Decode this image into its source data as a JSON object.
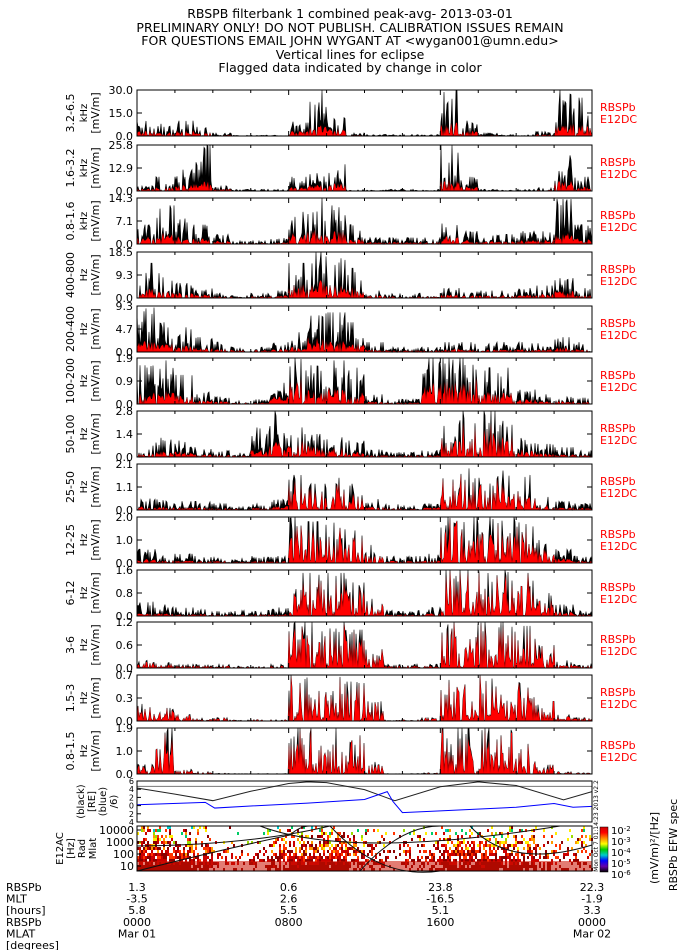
{
  "titles": [
    "RBSPB filterbank 1 combined peak-avg- 2013-03-01",
    "PRELIMINARY ONLY! DO NOT PUBLISH. CALIBRATION ISSUES REMAIN",
    "FOR QUESTIONS EMAIL JOHN WYGANT AT <wygan001@umn.edu>",
    "Vertical lines for eclipse",
    "Flagged data indicated by change in color"
  ],
  "colors": {
    "peak": "#000000",
    "avg": "#ff0000",
    "mlat": "#0000ff",
    "side_label": "#ff0000"
  },
  "chart_data": [
    {
      "type": "area",
      "band": "3.2-6.5",
      "unit": "kHz",
      "ylabel": "[mV/m]",
      "ylim": [
        0,
        30.0
      ],
      "ticks": [
        "0.0",
        "15.0",
        "30.0"
      ],
      "side_label": [
        "RBSPb",
        "E12DC"
      ],
      "peak": [
        12,
        8,
        10,
        6,
        2,
        0.5,
        0.5,
        0.5,
        10,
        30,
        12,
        2,
        1,
        1,
        1,
        1,
        30,
        10,
        2,
        1,
        1,
        3,
        30,
        25
      ],
      "avg": [
        3,
        2,
        3,
        2,
        0.5,
        0.2,
        0.2,
        0.2,
        3,
        6,
        4,
        0.5,
        0.3,
        0.3,
        0.3,
        0.3,
        8,
        3,
        0.5,
        0.3,
        0.3,
        1,
        7,
        6
      ]
    },
    {
      "type": "area",
      "band": "1.6-3.2",
      "unit": "kHz",
      "ylabel": "[mV/m]",
      "ylim": [
        0,
        25.8
      ],
      "ticks": [
        "0.0",
        "12.9",
        "25.8"
      ],
      "side_label": [
        "RBSPb",
        "E12DC"
      ],
      "peak": [
        3,
        8,
        12,
        25.8,
        3,
        1,
        1,
        1,
        8,
        10,
        15,
        1,
        0.5,
        1,
        1,
        1,
        25.8,
        8,
        1,
        0.5,
        1,
        2,
        20,
        8
      ],
      "avg": [
        1,
        2,
        3,
        5,
        1,
        0.3,
        0.3,
        0.3,
        2,
        3,
        4,
        0.3,
        0.2,
        0.3,
        0.3,
        0.3,
        6,
        2,
        0.3,
        0.2,
        0.3,
        0.6,
        5,
        2
      ]
    },
    {
      "type": "area",
      "band": "0.8-1.6",
      "unit": "kHz",
      "ylabel": "[mV/m]",
      "ylim": [
        0,
        14.3
      ],
      "ticks": [
        "0.0",
        "7.1",
        "14.3"
      ],
      "side_label": [
        "RBSPb",
        "E12DC"
      ],
      "peak": [
        6,
        12,
        8,
        6,
        3,
        1,
        1,
        2,
        10,
        14.3,
        12,
        6,
        2,
        2,
        2,
        2,
        8,
        4,
        3,
        3,
        4,
        5,
        14,
        6
      ],
      "avg": [
        2,
        3,
        2,
        1.5,
        0.8,
        0.3,
        0.3,
        0.5,
        3,
        4,
        3.5,
        1.5,
        0.5,
        0.5,
        0.5,
        0.5,
        2,
        1,
        0.8,
        0.8,
        1,
        1.3,
        3,
        1.5
      ]
    },
    {
      "type": "area",
      "band": "400-800",
      "unit": "Hz",
      "ylabel": "[mV/m]",
      "ylim": [
        0,
        18.5
      ],
      "ticks": [
        "0.0",
        "9.3",
        "18.5"
      ],
      "side_label": [
        "RBSPb",
        "E12DC"
      ],
      "peak": [
        14,
        10,
        6,
        4,
        2,
        1,
        2,
        3,
        14,
        18.5,
        16,
        12,
        3,
        2,
        2,
        2,
        4,
        3,
        3,
        3,
        4,
        5,
        8,
        4
      ],
      "avg": [
        4,
        3,
        2,
        1.2,
        0.6,
        0.3,
        0.6,
        1,
        5,
        6,
        5,
        4,
        1,
        0.6,
        0.6,
        0.6,
        1.2,
        1,
        1,
        1,
        1.2,
        1.5,
        2.5,
        1.2
      ]
    },
    {
      "type": "area",
      "band": "200-400",
      "unit": "Hz",
      "ylabel": "[mV/m]",
      "ylim": [
        0,
        9.3
      ],
      "ticks": [
        "0.0",
        "4.7",
        "9.3"
      ],
      "side_label": [
        "RBSPb",
        "E12DC"
      ],
      "peak": [
        9,
        6,
        5,
        3,
        2,
        1,
        1,
        2,
        4,
        9.3,
        8,
        6,
        2,
        1,
        1,
        1,
        2,
        2,
        2,
        2,
        2,
        2,
        3,
        2
      ],
      "avg": [
        2,
        1.5,
        1.2,
        0.8,
        0.5,
        0.3,
        0.3,
        0.5,
        1,
        2.5,
        2,
        1.5,
        0.5,
        0.3,
        0.3,
        0.3,
        0.5,
        0.5,
        0.5,
        0.5,
        0.5,
        0.5,
        0.8,
        0.5
      ]
    },
    {
      "type": "area",
      "band": "100-200",
      "unit": "Hz",
      "ylabel": "[mV/m]",
      "ylim": [
        0,
        1.9
      ],
      "ticks": [
        "0.0",
        "0.9",
        "1.9"
      ],
      "side_label": [
        "RBSPb",
        "E12DC"
      ],
      "peak": [
        1.6,
        1.8,
        1.2,
        0.5,
        0.3,
        0.2,
        0.2,
        1.2,
        1.9,
        1.6,
        1.8,
        1.5,
        0.4,
        0.2,
        0.2,
        1.9,
        1.9,
        1.9,
        1.5,
        1.5,
        0.6,
        0.4,
        0.3,
        0.3
      ],
      "avg": [
        0.4,
        0.5,
        0.3,
        0.15,
        0.1,
        0.05,
        0.05,
        0.3,
        0.9,
        0.5,
        0.6,
        0.4,
        0.1,
        0.05,
        0.05,
        0.8,
        0.9,
        0.9,
        0.6,
        0.5,
        0.2,
        0.1,
        0.1,
        0.1
      ]
    },
    {
      "type": "area",
      "band": "50-100",
      "unit": "Hz",
      "ylabel": "[mV/m]",
      "ylim": [
        0,
        2.8
      ],
      "ticks": [
        "0.0",
        "1.4",
        "2.8"
      ],
      "side_label": [
        "RBSPb",
        "E12DC"
      ],
      "peak": [
        0.8,
        1.2,
        1,
        0.6,
        0.4,
        0.3,
        2.0,
        2.8,
        1.8,
        1.4,
        1.2,
        1.0,
        0.5,
        0.3,
        0.3,
        0.4,
        2.5,
        2.8,
        2.8,
        2.2,
        1.2,
        0.8,
        0.6,
        0.4
      ],
      "avg": [
        0.2,
        0.3,
        0.3,
        0.15,
        0.1,
        0.08,
        0.4,
        0.9,
        1.2,
        0.6,
        0.5,
        0.3,
        0.1,
        0.08,
        0.08,
        0.1,
        1.4,
        1.8,
        1.8,
        1.2,
        0.4,
        0.2,
        0.15,
        0.1
      ]
    },
    {
      "type": "area",
      "band": "25-50",
      "unit": "Hz",
      "ylabel": "[mV/m]",
      "ylim": [
        0,
        2.1
      ],
      "ticks": [
        "0.0",
        "1.1",
        "2.1"
      ],
      "side_label": [
        "RBSPb",
        "E12DC"
      ],
      "peak": [
        0.6,
        0.5,
        0.4,
        0.4,
        0.3,
        0.2,
        0.3,
        0.5,
        1.6,
        1.2,
        1.6,
        1.2,
        0.5,
        0.3,
        0.2,
        0.3,
        1.8,
        1.9,
        2.0,
        1.8,
        1.6,
        0.6,
        0.4,
        0.3
      ],
      "avg": [
        0.15,
        0.12,
        0.1,
        0.1,
        0.08,
        0.05,
        0.08,
        0.15,
        1.2,
        0.9,
        1.2,
        0.8,
        0.15,
        0.08,
        0.05,
        0.1,
        1.4,
        1.6,
        1.7,
        1.4,
        1.2,
        0.2,
        0.1,
        0.08
      ]
    },
    {
      "type": "area",
      "band": "12-25",
      "unit": "Hz",
      "ylabel": "[mV/m]",
      "ylim": [
        0,
        2.0
      ],
      "ticks": [
        "0.0",
        "1.0",
        "2.0"
      ],
      "side_label": [
        "RBSPb",
        "E12DC"
      ],
      "peak": [
        0.6,
        0.4,
        0.4,
        0.3,
        0.3,
        0.2,
        0.3,
        0.3,
        2.0,
        1.8,
        1.8,
        1.6,
        0.8,
        0.3,
        0.3,
        0.4,
        2.0,
        2.0,
        2.0,
        2.0,
        1.8,
        1.0,
        0.6,
        0.3
      ],
      "avg": [
        0.15,
        0.1,
        0.1,
        0.08,
        0.08,
        0.05,
        0.08,
        0.08,
        1.8,
        1.6,
        1.6,
        1.4,
        0.4,
        0.08,
        0.08,
        0.1,
        1.8,
        1.8,
        1.8,
        1.8,
        1.6,
        0.6,
        0.2,
        0.08
      ]
    },
    {
      "type": "area",
      "band": "6-12",
      "unit": "Hz",
      "ylabel": "[mV/m]",
      "ylim": [
        0,
        1.6
      ],
      "ticks": [
        "0.0",
        "0.8",
        "1.6"
      ],
      "side_label": [
        "RBSPb",
        "E12DC"
      ],
      "peak": [
        0.5,
        0.4,
        0.3,
        0.3,
        0.2,
        0.2,
        0.2,
        0.3,
        1.6,
        1.5,
        1.5,
        1.3,
        0.6,
        0.2,
        0.2,
        0.3,
        1.6,
        1.6,
        1.6,
        1.6,
        1.5,
        0.8,
        0.4,
        0.2
      ],
      "avg": [
        0.1,
        0.08,
        0.06,
        0.06,
        0.05,
        0.04,
        0.05,
        0.06,
        1.5,
        1.4,
        1.4,
        1.2,
        0.4,
        0.05,
        0.05,
        0.08,
        1.5,
        1.5,
        1.5,
        1.5,
        1.4,
        0.6,
        0.15,
        0.05
      ]
    },
    {
      "type": "area",
      "band": "3-6",
      "unit": "Hz",
      "ylabel": "[mV/m]",
      "ylim": [
        0,
        1.2
      ],
      "ticks": [
        "0.0",
        "0.6",
        "1.2"
      ],
      "side_label": [
        "RBSPb",
        "E12DC"
      ],
      "peak": [
        0.2,
        0.15,
        0.1,
        0.1,
        0.1,
        0.05,
        0.05,
        0.1,
        1.2,
        1.2,
        1.2,
        1.0,
        0.5,
        0.1,
        0.1,
        0.1,
        1.2,
        1.2,
        1.2,
        1.2,
        1.1,
        0.6,
        0.2,
        0.1
      ],
      "avg": [
        0.15,
        0.1,
        0.05,
        0.05,
        0.05,
        0.03,
        0.03,
        0.05,
        1.2,
        1.2,
        1.2,
        1.0,
        0.45,
        0.05,
        0.05,
        0.05,
        1.2,
        1.2,
        1.2,
        1.2,
        1.1,
        0.5,
        0.1,
        0.05
      ]
    },
    {
      "type": "area",
      "band": "1.5-3",
      "unit": "Hz",
      "ylabel": "[mV/m]",
      "ylim": [
        0,
        0.7
      ],
      "ticks": [
        "0.0",
        "0.3",
        "0.7"
      ],
      "side_label": [
        "RBSPb",
        "E12DC"
      ],
      "peak": [
        0.3,
        0.2,
        0.1,
        0.05,
        0.05,
        0.02,
        0.02,
        0.02,
        0.7,
        0.7,
        0.7,
        0.6,
        0.3,
        0.02,
        0.02,
        0.05,
        0.7,
        0.7,
        0.7,
        0.7,
        0.6,
        0.3,
        0.1,
        0.05
      ],
      "avg": [
        0.3,
        0.2,
        0.1,
        0.05,
        0.05,
        0.02,
        0.02,
        0.02,
        0.7,
        0.7,
        0.7,
        0.6,
        0.3,
        0.02,
        0.02,
        0.05,
        0.7,
        0.7,
        0.7,
        0.7,
        0.6,
        0.3,
        0.1,
        0.05
      ]
    },
    {
      "type": "area",
      "band": "0.8-1.5",
      "unit": "Hz",
      "ylabel": "[mV/m]",
      "ylim": [
        0,
        1.9
      ],
      "ticks": [
        "0.0",
        "1.0",
        "1.9"
      ],
      "side_label": [
        "RBSPb",
        "E12DC"
      ],
      "peak": [
        0.4,
        1.9,
        0.2,
        0.1,
        0.05,
        0.02,
        0.02,
        0.02,
        1.9,
        1.9,
        1.9,
        1.6,
        0.5,
        0.02,
        0.02,
        0.05,
        1.9,
        1.9,
        1.9,
        1.9,
        1.9,
        0.4,
        0.1,
        0.05
      ],
      "avg": [
        0.4,
        1.9,
        0.2,
        0.1,
        0.05,
        0.02,
        0.02,
        0.02,
        1.9,
        1.9,
        1.9,
        1.6,
        0.5,
        0.02,
        0.02,
        0.05,
        1.9,
        1.9,
        1.9,
        1.9,
        1.9,
        0.4,
        0.1,
        0.05
      ]
    },
    {
      "type": "line",
      "ylabel": [
        "(black)",
        "[RE]",
        "(blue)",
        "/6)"
      ],
      "ylim": [
        -4,
        6
      ],
      "x_hours": [
        0,
        2,
        4,
        6,
        8,
        9,
        10,
        12,
        13.6,
        16,
        18,
        20,
        22.5,
        24
      ],
      "rad_re": [
        4.3,
        2.8,
        1.2,
        3.5,
        5.4,
        5.8,
        5.6,
        3.9,
        1.2,
        4.6,
        5.8,
        4.9,
        1.4,
        3.4
      ],
      "mlat_hours": [
        0,
        3.6,
        4.1,
        6,
        9,
        12,
        13.2,
        13.5,
        14,
        16,
        20,
        22,
        23,
        24
      ],
      "mlat_over_6": [
        0.2,
        0.8,
        -0.6,
        -0.1,
        0.6,
        1.5,
        3.4,
        1,
        -1.7,
        -1.3,
        -0.4,
        0.5,
        -0.4,
        -0.2
      ]
    },
    {
      "type": "heatmap",
      "ylabel": [
        "E12AC",
        "[Hz]",
        "Rad",
        "Mlat"
      ],
      "y_ticks": [
        "10",
        "100",
        "1000",
        "10000"
      ],
      "y_scale": "log",
      "colorbar": {
        "ticks": [
          "10^-2",
          "10^-3",
          "10^-4",
          "10^-5",
          "10^-6"
        ],
        "title": "(mV/m)²/[Hz]",
        "subtitle": "RBSPb EFW spec"
      },
      "stamp": "Mon Oct  7 01:14:23 2013 v2.2"
    }
  ],
  "ephemeris": {
    "row_labels": [
      "RBSPb",
      "MLT",
      "[hours]",
      "RBSPb",
      "MLAT",
      "[degrees]",
      "RBSPb"
    ],
    "columns": [
      {
        "mlt": "1.3",
        "mlat": "-3.5",
        "lshell": "5.8",
        "time": "0000",
        "date": "Mar 01"
      },
      {
        "mlt": "0.6",
        "mlat": "2.6",
        "lshell": "5.5",
        "time": "0800",
        "date": ""
      },
      {
        "mlt": "23.8",
        "mlat": "-16.5",
        "lshell": "5.1",
        "time": "1600",
        "date": ""
      },
      {
        "mlt": "22.3",
        "mlat": "-1.9",
        "lshell": "3.3",
        "time": "0000",
        "date": "Mar 02"
      }
    ]
  }
}
